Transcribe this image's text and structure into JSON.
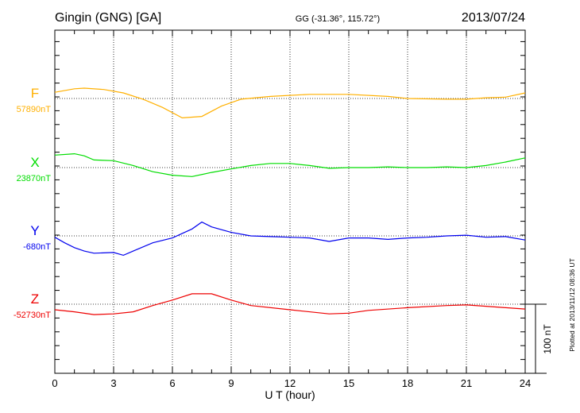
{
  "header": {
    "station": "Gingin (GNG)  [GA]",
    "coords": "GG (-31.36°, 115.72°)",
    "date": "2013/07/24"
  },
  "footer": {
    "plotted": "Plotted at 2013/11/12 08:36 UT"
  },
  "chart_data": {
    "type": "line",
    "title": "Gingin (GNG)  [GA]",
    "xlabel": "U T (hour)",
    "ylabel": "",
    "xlim": [
      0,
      24
    ],
    "xticks": [
      "0",
      "3",
      "6",
      "9",
      "12",
      "15",
      "18",
      "21",
      "24"
    ],
    "grid": true,
    "scale_label": "100 nT",
    "scale_nT": 100,
    "series": [
      {
        "name": "F",
        "baseline_label": "57890nT",
        "baseline": 57890,
        "color": "#ffb000",
        "x": [
          0,
          1,
          1.5,
          2.5,
          3.5,
          4.5,
          5.5,
          6.5,
          7.5,
          8.5,
          9.5,
          11,
          13,
          15,
          17,
          18,
          20,
          21,
          22,
          23,
          24
        ],
        "values": [
          57899,
          57904,
          57905,
          57903,
          57898,
          57889,
          57877,
          57862,
          57864,
          57879,
          57889,
          57893,
          57896,
          57896,
          57893,
          57890,
          57889,
          57889,
          57891,
          57892,
          57898
        ]
      },
      {
        "name": "X",
        "baseline_label": "23870nT",
        "baseline": 23870,
        "color": "#00dd00",
        "x": [
          0,
          1,
          1.5,
          2,
          3,
          4,
          5,
          6,
          7,
          8,
          9,
          10,
          11,
          12,
          13,
          14,
          15,
          16,
          17,
          18,
          19,
          20,
          21,
          22,
          23,
          24
        ],
        "values": [
          23888,
          23890,
          23887,
          23881,
          23880,
          23873,
          23864,
          23859,
          23857,
          23863,
          23868,
          23873,
          23876,
          23876,
          23873,
          23869,
          23870,
          23870,
          23871,
          23870,
          23870,
          23871,
          23870,
          23873,
          23878,
          23884
        ]
      },
      {
        "name": "Y",
        "baseline_label": "-680nT",
        "baseline": -680,
        "color": "#0000ee",
        "x": [
          0,
          0.5,
          1,
          1.5,
          2,
          3,
          3.5,
          4,
          5,
          6,
          7,
          7.5,
          8,
          9,
          10,
          11,
          12,
          13,
          14,
          15,
          16,
          17,
          18,
          19,
          20,
          21,
          22,
          23,
          24
        ],
        "values": [
          -682,
          -690,
          -697,
          -702,
          -705,
          -704,
          -708,
          -702,
          -690,
          -683,
          -670,
          -660,
          -667,
          -675,
          -680,
          -681,
          -682,
          -683,
          -688,
          -683,
          -683,
          -685,
          -683,
          -682,
          -680,
          -679,
          -682,
          -681,
          -686
        ]
      },
      {
        "name": "Z",
        "baseline_label": "-52730nT",
        "baseline": -52730,
        "color": "#ee0000",
        "x": [
          0,
          1,
          2,
          3,
          4,
          5,
          6,
          7,
          8,
          9,
          10,
          12,
          14,
          15,
          16,
          18,
          20,
          21,
          22,
          23,
          24
        ],
        "values": [
          -52738,
          -52741,
          -52745,
          -52744,
          -52741,
          -52732,
          -52724,
          -52715,
          -52715,
          -52724,
          -52732,
          -52738,
          -52744,
          -52743,
          -52739,
          -52735,
          -52732,
          -52731,
          -52733,
          -52735,
          -52737
        ]
      }
    ]
  }
}
